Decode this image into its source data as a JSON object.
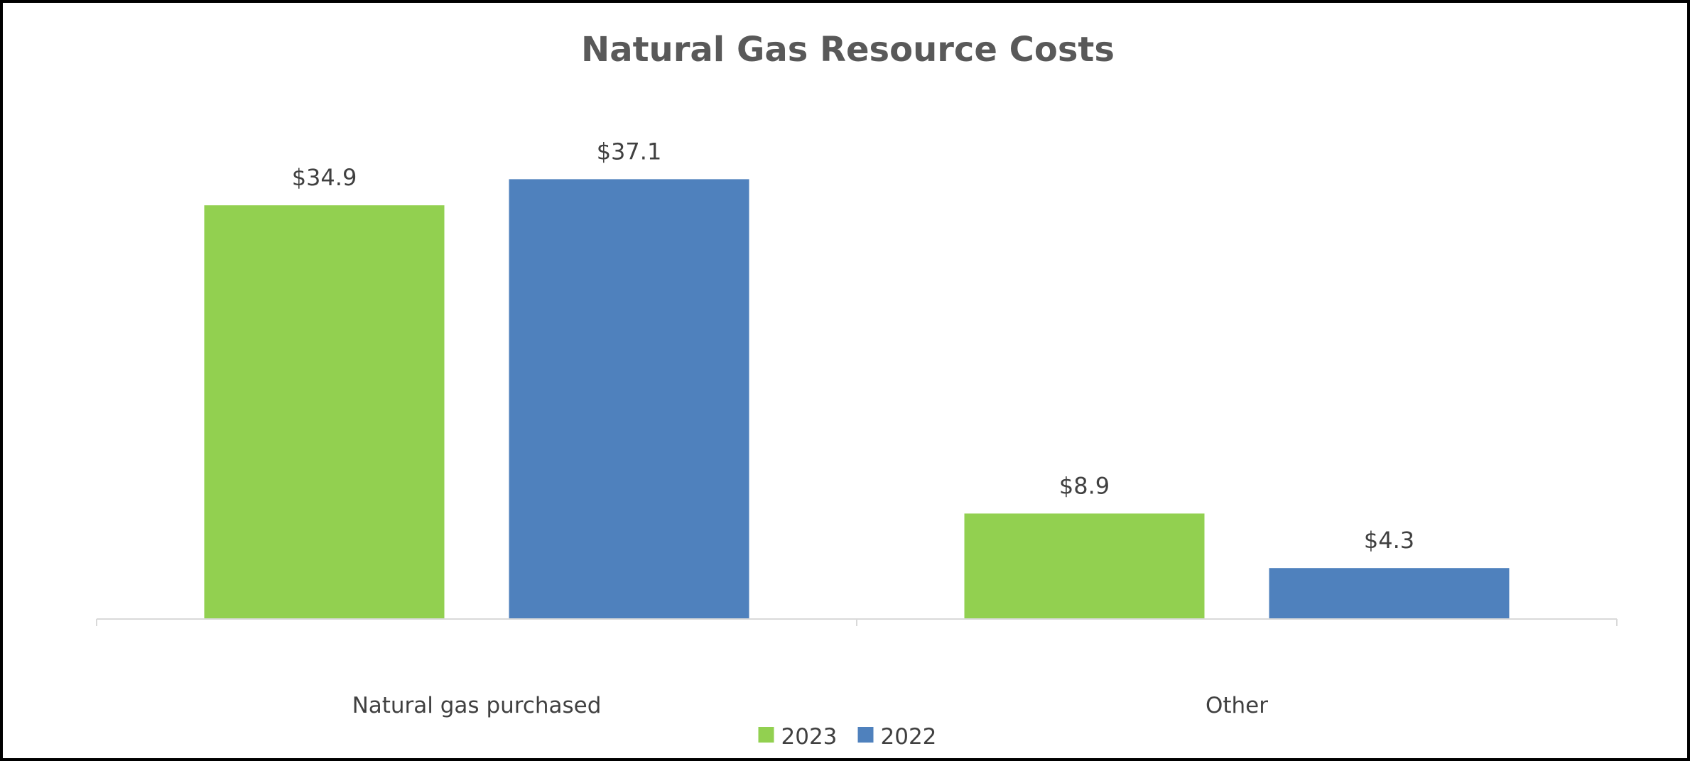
{
  "chart_data": {
    "type": "bar",
    "title": "Natural Gas Resource Costs",
    "xlabel": "",
    "ylabel": "",
    "categories": [
      "Natural gas purchased",
      "Other"
    ],
    "series": [
      {
        "name": "2023",
        "color": "#92d050",
        "values": [
          34.9,
          8.9
        ],
        "labels": [
          "$34.9",
          "$8.9"
        ]
      },
      {
        "name": "2022",
        "color": "#4f81bd",
        "values": [
          37.1,
          4.3
        ],
        "labels": [
          "$37.1",
          "$4.3"
        ]
      }
    ],
    "ylim": [
      0,
      40
    ],
    "grid": false,
    "legend_position": "bottom",
    "axis_color": "#d9d9d9"
  }
}
